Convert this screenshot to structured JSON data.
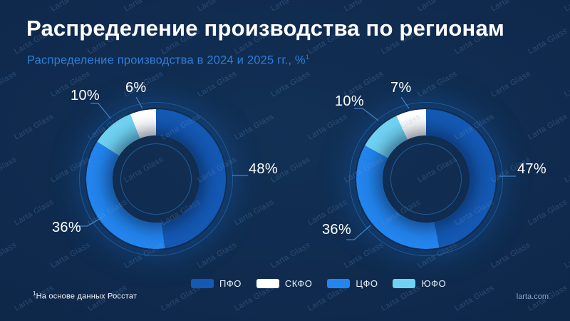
{
  "slide": {
    "title": "Распределение производства по регионам",
    "subtitle": "Распределение производства в 2024 и 2025 гг., %",
    "subtitle_sup": "1",
    "footnote_sup": "1",
    "footnote": "На основе данных Росстат",
    "site": "larta.com",
    "watermark": "Larta Glass"
  },
  "colors": {
    "background": "#0E2546",
    "subtitle_accent": "#2E7FD9",
    "callout_line": "#4A8FD6",
    "pfo_blue": "#1459B4",
    "skfo_white": "#FFFFFF",
    "cfo_bright_blue": "#2385EE",
    "yufo_cyan": "#70D2F2"
  },
  "legend": {
    "items": [
      {
        "label": "ПФО",
        "color": "#1459B4"
      },
      {
        "label": "СКФО",
        "color": "#FFFFFF"
      },
      {
        "label": "ЦФО",
        "color": "#2385EE"
      },
      {
        "label": "ЮФО",
        "color": "#70D2F2"
      }
    ]
  },
  "chart_data": [
    {
      "type": "pie",
      "subtype": "donut",
      "position": "left",
      "start_angle_deg": 0,
      "direction": "clockwise",
      "segments": [
        {
          "label": "ПФО",
          "value": 48,
          "display": "48%",
          "color": "#1459B4"
        },
        {
          "label": "ЦФО",
          "value": 36,
          "display": "36%",
          "color": "#2385EE"
        },
        {
          "label": "ЮФО",
          "value": 10,
          "display": "10%",
          "color": "#70D2F2"
        },
        {
          "label": "СКФО",
          "value": 6,
          "display": "6%",
          "color": "#FFFFFF"
        }
      ]
    },
    {
      "type": "pie",
      "subtype": "donut",
      "position": "right",
      "start_angle_deg": 0,
      "direction": "clockwise",
      "segments": [
        {
          "label": "ПФО",
          "value": 47,
          "display": "47%",
          "color": "#1459B4"
        },
        {
          "label": "ЦФО",
          "value": 36,
          "display": "36%",
          "color": "#2385EE"
        },
        {
          "label": "ЮФО",
          "value": 10,
          "display": "10%",
          "color": "#70D2F2"
        },
        {
          "label": "СКФО",
          "value": 7,
          "display": "7%",
          "color": "#FFFFFF"
        }
      ]
    }
  ]
}
